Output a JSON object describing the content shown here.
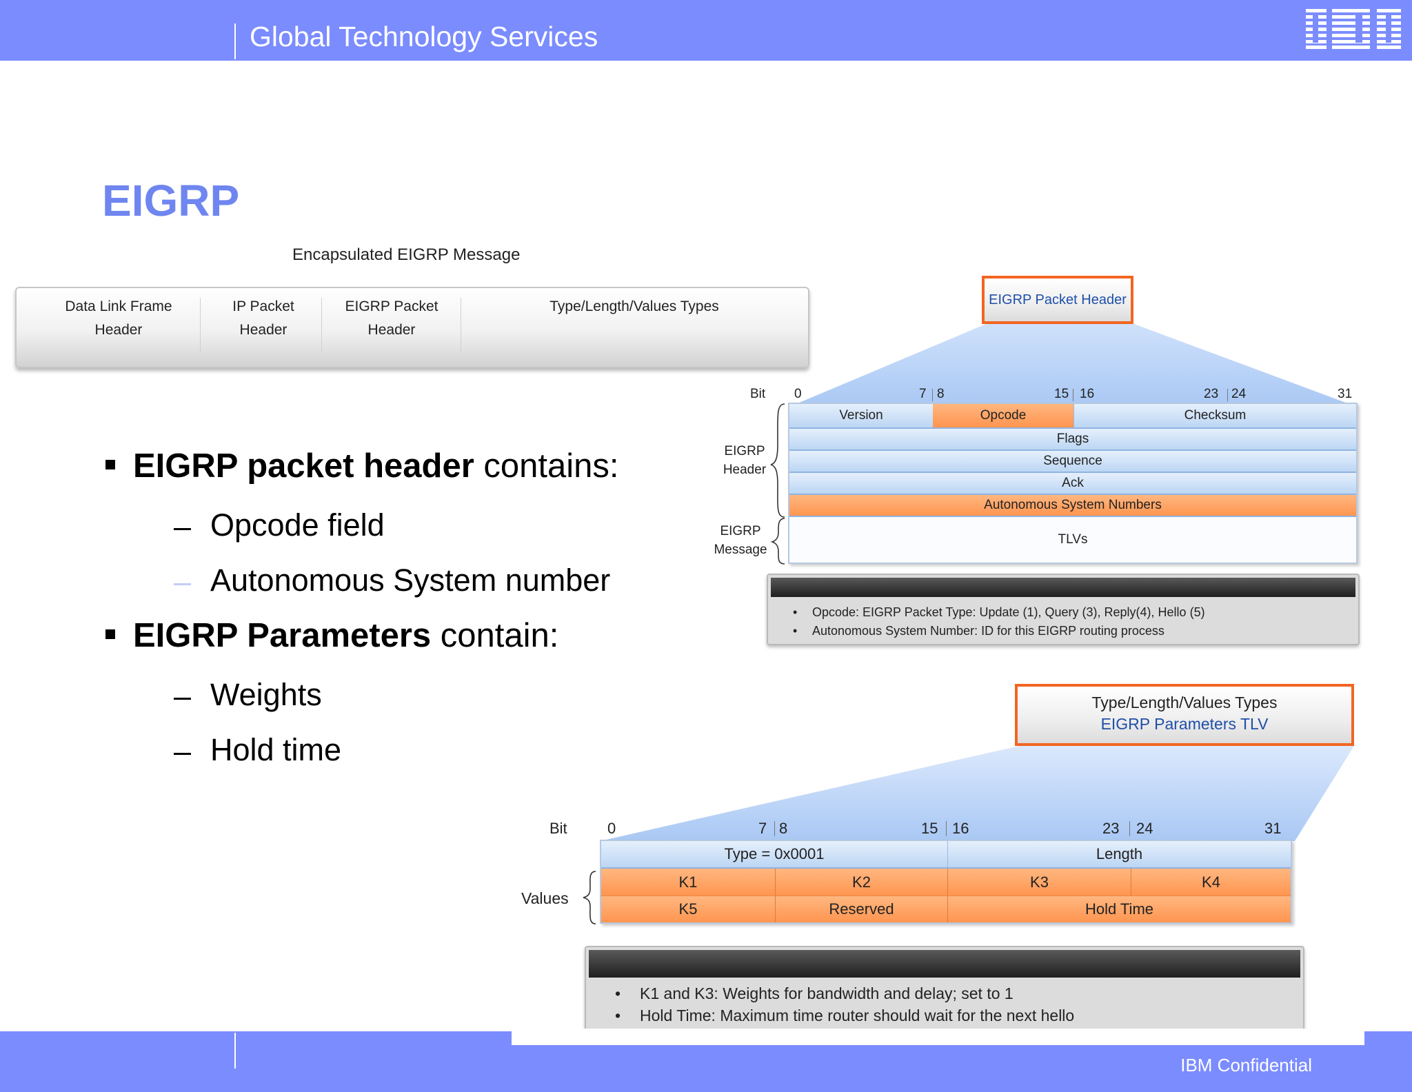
{
  "header": {
    "title": "Global Technology Services",
    "logo": "IBM"
  },
  "footer": {
    "confidential": "IBM Confidential"
  },
  "slide": {
    "title": "EIGRP"
  },
  "encapsulated": {
    "label": "Encapsulated EIGRP Message",
    "segments": [
      {
        "line1": "Data Link Frame",
        "line2": "Header"
      },
      {
        "line1": "IP Packet",
        "line2": "Header"
      },
      {
        "line1": "EIGRP Packet",
        "line2": "Header"
      },
      {
        "line1": "Type/Length/Values Types",
        "line2": ""
      }
    ]
  },
  "bullets": [
    {
      "bold": "EIGRP packet header",
      "rest": " contains:",
      "subs": [
        "Opcode field",
        "Autonomous System number"
      ]
    },
    {
      "bold": "EIGRP Parameters",
      "rest": " contain:",
      "subs": [
        "Weights",
        "Hold time"
      ]
    }
  ],
  "packet_header": {
    "callout": "EIGRP Packet Header",
    "bit_label": "Bit",
    "bit_marks": [
      "0",
      "7",
      "8",
      "15",
      "16",
      "23",
      "24",
      "31"
    ],
    "group_header": [
      "EIGRP",
      "Header"
    ],
    "group_message": [
      "EIGRP",
      "Message"
    ],
    "row1": [
      "Version",
      "Opcode",
      "Checksum"
    ],
    "flags": "Flags",
    "sequence": "Sequence",
    "ack": "Ack",
    "asn": "Autonomous System Numbers",
    "tlvs": "TLVs",
    "notes": [
      {
        "term": "Opcode:",
        "text": " EIGRP Packet Type: Update (1), Query (3), Reply(4), Hello (5)"
      },
      {
        "term": "Autonomous System Number:",
        "text": " ID for this EIGRP routing process"
      }
    ]
  },
  "params_tlv": {
    "callout_line1": "Type/Length/Values Types",
    "callout_line2": "EIGRP Parameters TLV",
    "bit_label": "Bit",
    "bit_marks": [
      "0",
      "7",
      "8",
      "15",
      "16",
      "23",
      "24",
      "31"
    ],
    "values_label": "Values",
    "row1": [
      "Type = 0x0001",
      "Length"
    ],
    "row2": [
      "K1",
      "K2",
      "K3",
      "K4"
    ],
    "row3": [
      "K5",
      "Reserved",
      "Hold Time"
    ],
    "notes": [
      {
        "term": "K1 and K3:",
        "text": " Weights for bandwidth and delay; set to 1"
      },
      {
        "term": "Hold Time:",
        "text": " Maximum time router should wait for the next hello"
      }
    ]
  },
  "colors": {
    "brand_bar": "#7b8cff",
    "title": "#6f86f0",
    "callout_border": "#f26522",
    "field_orange": "#ff9d5c",
    "field_blue": "#c7ddf6"
  }
}
